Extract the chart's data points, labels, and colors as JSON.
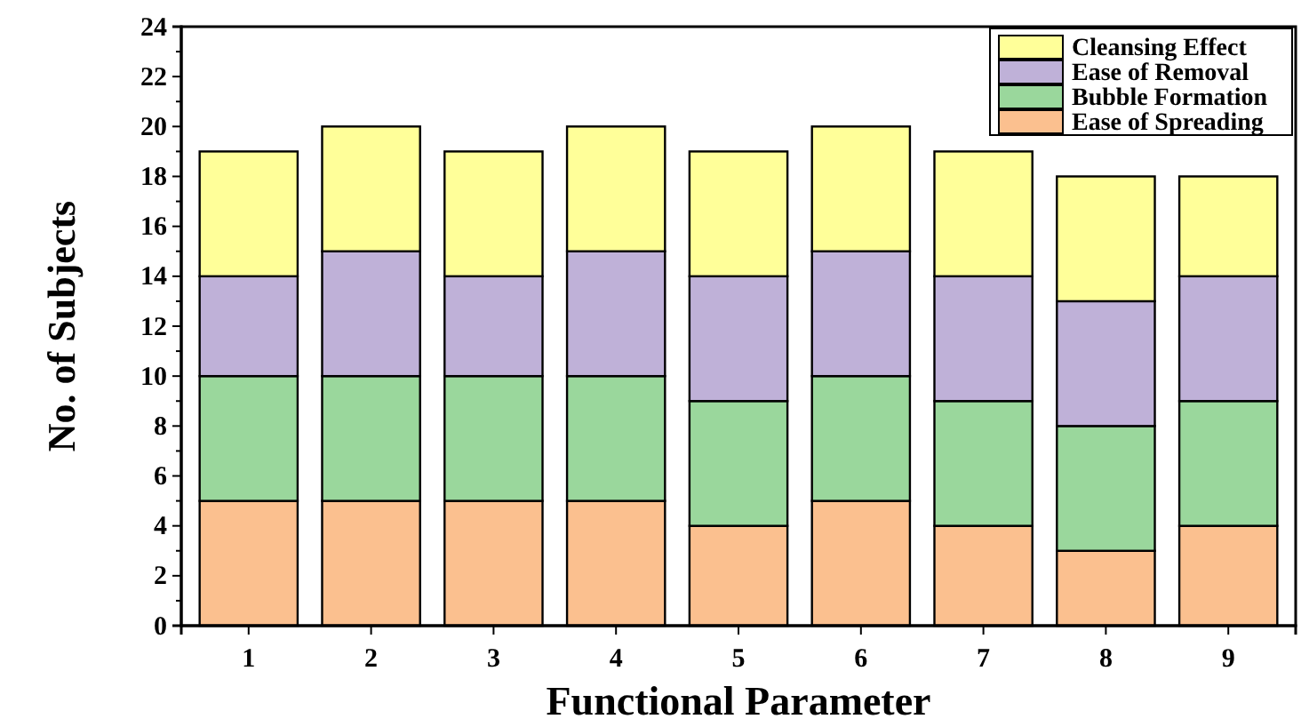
{
  "chart_data": {
    "type": "bar",
    "stacked": true,
    "xlabel": "Functional Parameter",
    "ylabel": "No. of Subjects",
    "categories": [
      "1",
      "2",
      "3",
      "4",
      "5",
      "6",
      "7",
      "8",
      "9"
    ],
    "series": [
      {
        "name": "Ease of Spreading",
        "color": "#fbc08f",
        "values": [
          5,
          5,
          5,
          5,
          4,
          5,
          4,
          3,
          4
        ]
      },
      {
        "name": "Bubble Formation",
        "color": "#9ad79c",
        "values": [
          5,
          5,
          5,
          5,
          5,
          5,
          5,
          5,
          5
        ]
      },
      {
        "name": "Ease of Removal",
        "color": "#bfb1d8",
        "values": [
          4,
          5,
          4,
          5,
          5,
          5,
          5,
          5,
          5
        ]
      },
      {
        "name": "Cleansing Effect",
        "color": "#ffff99",
        "values": [
          5,
          5,
          5,
          5,
          5,
          5,
          5,
          5,
          4
        ]
      }
    ],
    "ylim": [
      0,
      24
    ],
    "yticks": [
      0,
      2,
      4,
      6,
      8,
      10,
      12,
      14,
      16,
      18,
      20,
      22,
      24
    ],
    "legend": "top right",
    "grid": false
  }
}
